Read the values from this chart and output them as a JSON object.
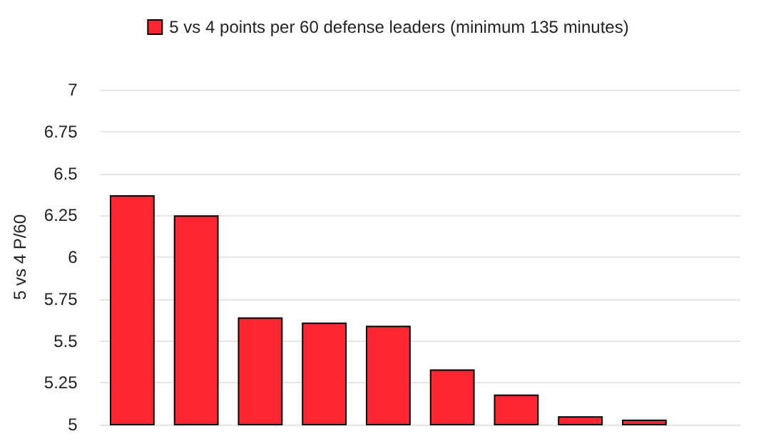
{
  "chart_data": {
    "type": "bar",
    "ylabel": "5 vs 4 P/60",
    "categories": [
      null,
      null,
      null,
      null,
      null,
      null,
      null,
      null,
      null,
      null
    ],
    "series": [
      {
        "name": "5 vs 4 points per 60 defense leaders (minimum 135 minutes)",
        "color": "#fe2631",
        "values": [
          6.37,
          6.25,
          5.64,
          5.61,
          5.59,
          5.33,
          5.18,
          5.05,
          5.03,
          null
        ]
      }
    ],
    "ylim": [
      5,
      7
    ],
    "yticks": [
      5,
      5.25,
      5.5,
      5.75,
      6,
      6.25,
      6.5,
      6.75,
      7
    ],
    "grid": "y",
    "legend": "top"
  }
}
